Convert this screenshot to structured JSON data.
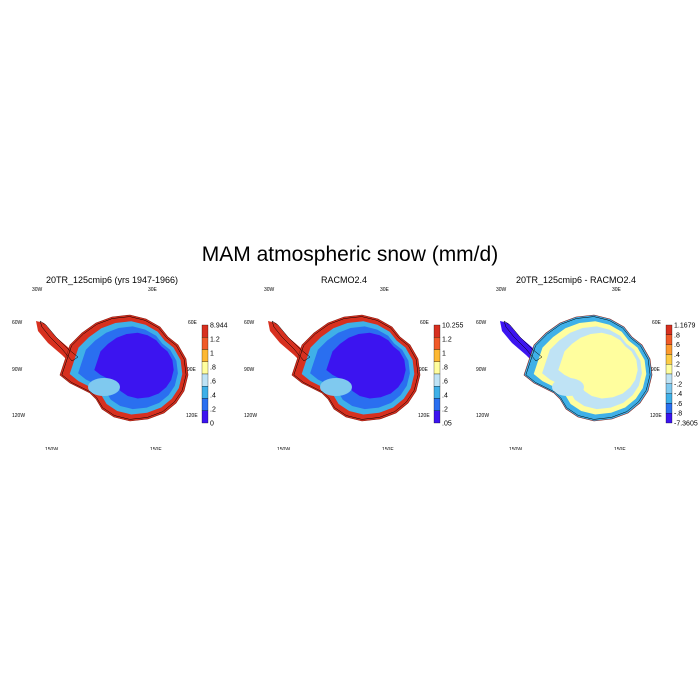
{
  "title": "MAM atmospheric snow (mm/d)",
  "lon_labels": {
    "w30": "30W",
    "e30": "30E",
    "w60": "60W",
    "e60": "60E",
    "w90": "90W",
    "e90": "90E",
    "w120": "120W",
    "e120": "120E",
    "w150": "150W",
    "e150": "150E",
    "s180": "180"
  },
  "panels": [
    {
      "title": "20TR_125cmip6 (yrs 1947-1966)",
      "colorbar": {
        "labels": [
          "8.944",
          "1.2",
          "1",
          ".8",
          ".6",
          ".4",
          ".2",
          "0"
        ],
        "colors": [
          "#d7301f",
          "#f05a28",
          "#fdb833",
          "#fffe9e",
          "#bfe3f5",
          "#3fb0e8",
          "#2a6ff0",
          "#3c14f0"
        ]
      },
      "field": {
        "interior": "#3c14f0",
        "ring1": "#2a6ff0",
        "ring2": "#3fb0e8",
        "coast": "#d7301f",
        "peninsula": "#d7301f",
        "shelf": "#7fc9ef"
      }
    },
    {
      "title": "RACMO2.4",
      "colorbar": {
        "labels": [
          "10.255",
          "1.2",
          "1",
          ".8",
          ".6",
          ".4",
          ".2",
          ".05"
        ],
        "colors": [
          "#d7301f",
          "#f05a28",
          "#fdb833",
          "#fffe9e",
          "#bfe3f5",
          "#3fb0e8",
          "#2a6ff0",
          "#3c14f0"
        ]
      },
      "field": {
        "interior": "#3c14f0",
        "ring1": "#2a6ff0",
        "ring2": "#3fb0e8",
        "coast": "#d7301f",
        "peninsula": "#d7301f",
        "shelf": "#7fc9ef"
      }
    },
    {
      "title": "20TR_125cmip6 - RACMO2.4",
      "colorbar": {
        "labels": [
          "1.1679",
          ".8",
          ".6",
          ".4",
          ".2",
          ".0",
          "-.2",
          "-.4",
          "-.6",
          "-.8",
          "-7.3605"
        ],
        "colors": [
          "#d7301f",
          "#f05a28",
          "#fd9a2e",
          "#fdcc45",
          "#fffe9e",
          "#bfe3f5",
          "#7fc9ef",
          "#3fb0e8",
          "#2a6ff0",
          "#3c14f0"
        ]
      },
      "field": {
        "interior": "#fffe9e",
        "ring1": "#bfe3f5",
        "ring2": "#fffe9e",
        "coast": "#3fb0e8",
        "peninsula": "#3c14f0",
        "shelf": "#bfe3f5"
      }
    }
  ]
}
